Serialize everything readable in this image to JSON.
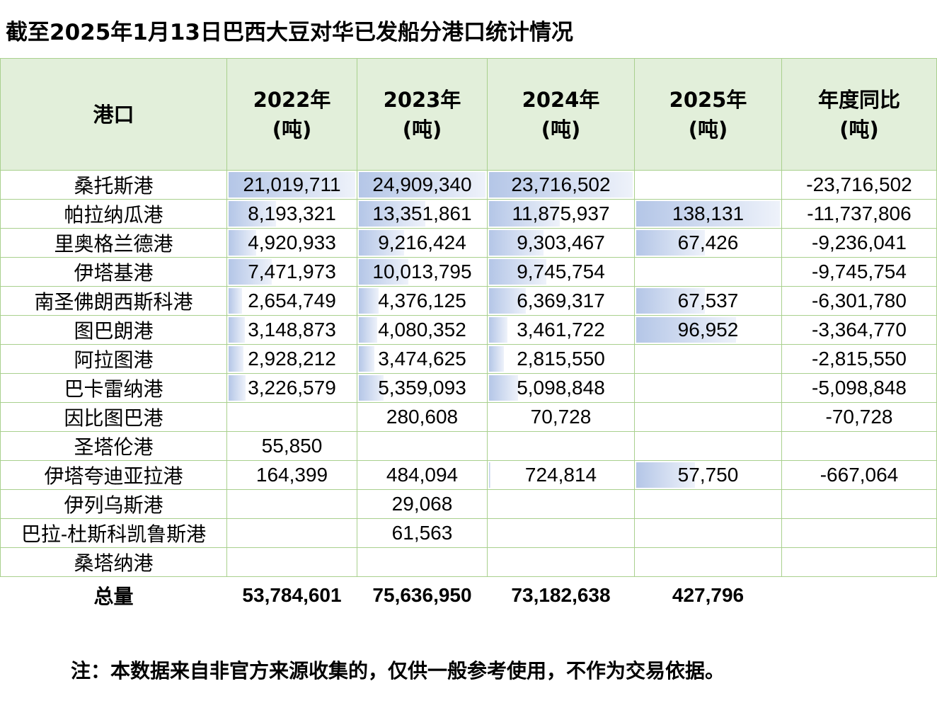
{
  "title": "截至2025年1月13日巴西大豆对华已发船分港口统计情况",
  "headers": [
    "港口",
    "2022年\n(吨)",
    "2023年\n(吨)",
    "2024年\n(吨)",
    "2025年\n(吨)",
    "年度同比\n(吨)"
  ],
  "rows": [
    [
      "桑托斯港",
      "21,019,711",
      "24,909,340",
      "23,716,502",
      "",
      "-23,716,502"
    ],
    [
      "帕拉纳瓜港",
      "8,193,321",
      "13,351,861",
      "11,875,937",
      "138,131",
      "-11,737,806"
    ],
    [
      "里奥格兰德港",
      "4,920,933",
      "9,216,424",
      "9,303,467",
      "67,426",
      "-9,236,041"
    ],
    [
      "伊塔基港",
      "7,471,973",
      "10,013,795",
      "9,745,754",
      "",
      "-9,745,754"
    ],
    [
      "南圣佛朗西斯科港",
      "2,654,749",
      "4,376,125",
      "6,369,317",
      "67,537",
      "-6,301,780"
    ],
    [
      "图巴朗港",
      "3,148,873",
      "4,080,352",
      "3,461,722",
      "96,952",
      "-3,364,770"
    ],
    [
      "阿拉图港",
      "2,928,212",
      "3,474,625",
      "2,815,550",
      "",
      "-2,815,550"
    ],
    [
      "巴卡雷纳港",
      "3,226,579",
      "5,359,093",
      "5,098,848",
      "",
      "-5,098,848"
    ],
    [
      "因比图巴港",
      "",
      "280,608",
      "70,728",
      "",
      "-70,728"
    ],
    [
      "圣塔伦港",
      "55,850",
      "",
      "",
      "",
      ""
    ],
    [
      "伊塔夸迪亚拉港",
      "164,399",
      "484,094",
      "724,814",
      "57,750",
      "-667,064"
    ],
    [
      "伊列乌斯港",
      "",
      "29,068",
      "",
      "",
      ""
    ],
    [
      "巴拉-杜斯科凯鲁斯港",
      "",
      "61,563",
      "",
      "",
      ""
    ],
    [
      "桑塔纳港",
      "",
      "",
      "",
      "",
      ""
    ]
  ],
  "total": [
    "总量",
    "53,784,601",
    "75,636,950",
    "73,182,638",
    "427,796",
    ""
  ],
  "note": "注：本数据来自非官方来源收集的，仅供一般参考使用，不作为交易依据。",
  "colors": {
    "header_bg": "#e2efda",
    "border": "#a9d08e",
    "data_bar": "#b4c6e7"
  }
}
